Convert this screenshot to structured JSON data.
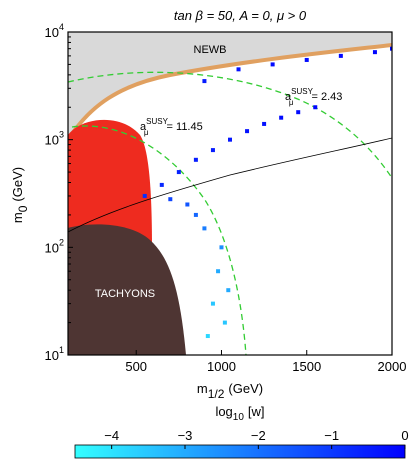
{
  "chart_data": {
    "type": "scatter",
    "title": "tan β = 50, A = 0, μ > 0",
    "x_label": {
      "text": "m",
      "sub": "1/2",
      "unit": "(GeV)"
    },
    "y_label": {
      "text": "m",
      "sub": "0",
      "unit": "(GeV)"
    },
    "xlim": [
      100,
      2000
    ],
    "xticks": [
      500,
      1000,
      1500,
      2000
    ],
    "ylim": [
      10,
      10000
    ],
    "log_y": true,
    "yticks": [
      {
        "value": 10,
        "label": "10",
        "exponent": "1"
      },
      {
        "value": 100,
        "label": "10",
        "exponent": "2"
      },
      {
        "value": 1000,
        "label": "10",
        "exponent": "3"
      },
      {
        "value": 10000,
        "label": "10",
        "exponent": "4"
      }
    ],
    "annotations": [
      {
        "text": "NEWB"
      },
      {
        "text": "TACHYONS"
      },
      {
        "base": "a",
        "sup": "SUSY",
        "sub": "μ",
        "text": "= 11.45"
      },
      {
        "base": "a",
        "sup": "SUSY",
        "sub": "μ",
        "text": "= 2.43"
      }
    ],
    "series": [
      {
        "name": "w",
        "x": [
          900,
          1100,
          1300,
          1500,
          1700,
          1900,
          2000,
          550,
          650,
          750,
          850,
          950,
          1050,
          1150,
          1250,
          1350,
          1450,
          1550,
          920,
          950,
          980,
          1000,
          1020,
          1040,
          900,
          850,
          800,
          700
        ],
        "values": [
          3500,
          4500,
          5000,
          5500,
          6000,
          6500,
          7000,
          300,
          380,
          500,
          650,
          800,
          1000,
          1200,
          1400,
          1600,
          1800,
          2000,
          15,
          30,
          60,
          100,
          20,
          40,
          150,
          200,
          250,
          280
        ],
        "w": [
          -0.5,
          -0.3,
          -0.2,
          -0.2,
          -0.1,
          -0.1,
          -0.1,
          -0.8,
          -0.7,
          -0.6,
          -0.5,
          -0.5,
          -0.4,
          -0.3,
          -0.3,
          -0.2,
          -0.2,
          -0.1,
          -3.8,
          -3.5,
          -3,
          -2.5,
          -3.5,
          -3,
          -2.2,
          -1.8,
          -1.5,
          -1.2
        ]
      }
    ],
    "colorbar": {
      "label": {
        "text": "log",
        "sub": "10",
        "unit": "[w]"
      },
      "clim": [
        -4.5,
        0
      ],
      "ticks": [
        {
          "value": -4,
          "label": "−4"
        },
        {
          "value": -3,
          "label": "−3"
        },
        {
          "value": -2,
          "label": "−2"
        },
        {
          "value": -1,
          "label": "−1"
        },
        0
      ],
      "colormap": [
        "#33ffff",
        "#0000ff"
      ]
    }
  }
}
